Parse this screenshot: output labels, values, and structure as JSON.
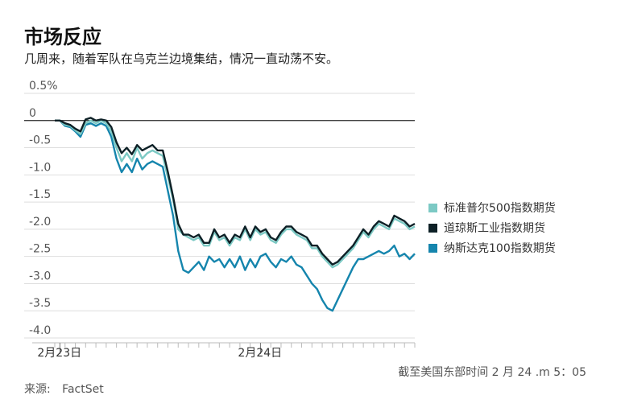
{
  "header": {
    "title": "市场反应",
    "subtitle": "几周来，随着军队在乌克兰边境集结，情况一直动荡不安。"
  },
  "footer": {
    "note": "截至美国东部时间 2 月 24 .m 5：05",
    "source_label": "来源:",
    "source": "FactSet"
  },
  "colors": {
    "sp500": "#7cc9c4",
    "dow": "#0d2026",
    "nasdaq": "#1585ad",
    "grid": "#dedede",
    "zero": "#222222"
  },
  "chart_data": {
    "type": "line",
    "title": "市场反应",
    "ylim": [
      -4.0,
      0.5
    ],
    "yticks": [
      0.5,
      0,
      -0.5,
      -1.0,
      -1.5,
      -2.0,
      -2.5,
      -3.0,
      -3.5,
      -4.0
    ],
    "ytick_labels": [
      "0.5%",
      "0",
      "-0.5",
      "-1.0",
      "-1.5",
      "-2.0",
      "-2.5",
      "-3.0",
      "-3.5",
      "-4.0"
    ],
    "xlim": [
      0,
      70
    ],
    "xtick_labels": [
      {
        "x": 1,
        "label": "2月23日"
      },
      {
        "x": 40,
        "label": "2月24日"
      }
    ],
    "grid": true,
    "legend_position": "right",
    "series": [
      {
        "name": "标准普尔500指数期货",
        "key": "sp500",
        "points": [
          [
            0,
            0
          ],
          [
            1,
            0
          ],
          [
            2,
            -0.08
          ],
          [
            3,
            -0.1
          ],
          [
            4,
            -0.18
          ],
          [
            5,
            -0.25
          ],
          [
            6,
            -0.05
          ],
          [
            7,
            0
          ],
          [
            8,
            -0.05
          ],
          [
            9,
            0
          ],
          [
            10,
            -0.05
          ],
          [
            11,
            -0.2
          ],
          [
            12,
            -0.5
          ],
          [
            13,
            -0.75
          ],
          [
            14,
            -0.6
          ],
          [
            15,
            -0.75
          ],
          [
            16,
            -0.5
          ],
          [
            17,
            -0.7
          ],
          [
            18,
            -0.6
          ],
          [
            19,
            -0.55
          ],
          [
            20,
            -0.6
          ],
          [
            21,
            -0.65
          ],
          [
            22,
            -1.05
          ],
          [
            23,
            -1.45
          ],
          [
            24,
            -2.0
          ],
          [
            25,
            -2.1
          ],
          [
            26,
            -2.15
          ],
          [
            27,
            -2.2
          ],
          [
            28,
            -2.15
          ],
          [
            29,
            -2.3
          ],
          [
            30,
            -2.3
          ],
          [
            31,
            -2.05
          ],
          [
            32,
            -2.2
          ],
          [
            33,
            -2.15
          ],
          [
            34,
            -2.3
          ],
          [
            35,
            -2.15
          ],
          [
            36,
            -2.2
          ],
          [
            37,
            -2.0
          ],
          [
            38,
            -2.2
          ],
          [
            39,
            -2.0
          ],
          [
            40,
            -2.1
          ],
          [
            41,
            -2.05
          ],
          [
            42,
            -2.2
          ],
          [
            43,
            -2.25
          ],
          [
            44,
            -2.1
          ],
          [
            45,
            -2.0
          ],
          [
            46,
            -2.0
          ],
          [
            47,
            -2.1
          ],
          [
            48,
            -2.15
          ],
          [
            49,
            -2.2
          ],
          [
            50,
            -2.35
          ],
          [
            51,
            -2.35
          ],
          [
            52,
            -2.5
          ],
          [
            53,
            -2.6
          ],
          [
            54,
            -2.7
          ],
          [
            55,
            -2.65
          ],
          [
            56,
            -2.55
          ],
          [
            57,
            -2.45
          ],
          [
            58,
            -2.35
          ],
          [
            59,
            -2.2
          ],
          [
            60,
            -2.05
          ],
          [
            61,
            -2.15
          ],
          [
            62,
            -2.0
          ],
          [
            63,
            -1.9
          ],
          [
            64,
            -1.95
          ],
          [
            65,
            -2.0
          ],
          [
            66,
            -1.8
          ],
          [
            67,
            -1.85
          ],
          [
            68,
            -1.9
          ],
          [
            69,
            -2.0
          ],
          [
            70,
            -1.95
          ]
        ]
      },
      {
        "name": "道琼斯工业指数期货",
        "key": "dow",
        "points": [
          [
            0,
            0
          ],
          [
            1,
            0
          ],
          [
            2,
            -0.05
          ],
          [
            3,
            -0.08
          ],
          [
            4,
            -0.15
          ],
          [
            5,
            -0.2
          ],
          [
            6,
            0.02
          ],
          [
            7,
            0.05
          ],
          [
            8,
            0
          ],
          [
            9,
            0.02
          ],
          [
            10,
            0
          ],
          [
            11,
            -0.12
          ],
          [
            12,
            -0.4
          ],
          [
            13,
            -0.6
          ],
          [
            14,
            -0.5
          ],
          [
            15,
            -0.62
          ],
          [
            16,
            -0.45
          ],
          [
            17,
            -0.55
          ],
          [
            18,
            -0.5
          ],
          [
            19,
            -0.45
          ],
          [
            20,
            -0.55
          ],
          [
            21,
            -0.55
          ],
          [
            22,
            -0.95
          ],
          [
            23,
            -1.4
          ],
          [
            24,
            -1.9
          ],
          [
            25,
            -2.1
          ],
          [
            26,
            -2.1
          ],
          [
            27,
            -2.15
          ],
          [
            28,
            -2.1
          ],
          [
            29,
            -2.25
          ],
          [
            30,
            -2.25
          ],
          [
            31,
            -2.0
          ],
          [
            32,
            -2.15
          ],
          [
            33,
            -2.1
          ],
          [
            34,
            -2.25
          ],
          [
            35,
            -2.1
          ],
          [
            36,
            -2.15
          ],
          [
            37,
            -1.95
          ],
          [
            38,
            -2.15
          ],
          [
            39,
            -1.95
          ],
          [
            40,
            -2.05
          ],
          [
            41,
            -2.0
          ],
          [
            42,
            -2.15
          ],
          [
            43,
            -2.2
          ],
          [
            44,
            -2.05
          ],
          [
            45,
            -1.95
          ],
          [
            46,
            -1.95
          ],
          [
            47,
            -2.05
          ],
          [
            48,
            -2.1
          ],
          [
            49,
            -2.15
          ],
          [
            50,
            -2.3
          ],
          [
            51,
            -2.3
          ],
          [
            52,
            -2.45
          ],
          [
            53,
            -2.55
          ],
          [
            54,
            -2.65
          ],
          [
            55,
            -2.6
          ],
          [
            56,
            -2.5
          ],
          [
            57,
            -2.4
          ],
          [
            58,
            -2.3
          ],
          [
            59,
            -2.15
          ],
          [
            60,
            -2.0
          ],
          [
            61,
            -2.1
          ],
          [
            62,
            -1.95
          ],
          [
            63,
            -1.85
          ],
          [
            64,
            -1.9
          ],
          [
            65,
            -1.95
          ],
          [
            66,
            -1.75
          ],
          [
            67,
            -1.8
          ],
          [
            68,
            -1.85
          ],
          [
            69,
            -1.95
          ],
          [
            70,
            -1.9
          ]
        ]
      },
      {
        "name": "纳斯达克100指数期货",
        "key": "nasdaq",
        "points": [
          [
            0,
            0
          ],
          [
            1,
            0
          ],
          [
            2,
            -0.1
          ],
          [
            3,
            -0.12
          ],
          [
            4,
            -0.2
          ],
          [
            5,
            -0.3
          ],
          [
            6,
            -0.08
          ],
          [
            7,
            -0.05
          ],
          [
            8,
            -0.1
          ],
          [
            9,
            -0.05
          ],
          [
            10,
            -0.1
          ],
          [
            11,
            -0.3
          ],
          [
            12,
            -0.7
          ],
          [
            13,
            -0.95
          ],
          [
            14,
            -0.8
          ],
          [
            15,
            -0.95
          ],
          [
            16,
            -0.7
          ],
          [
            17,
            -0.9
          ],
          [
            18,
            -0.8
          ],
          [
            19,
            -0.75
          ],
          [
            20,
            -0.8
          ],
          [
            21,
            -0.85
          ],
          [
            22,
            -1.3
          ],
          [
            23,
            -1.75
          ],
          [
            24,
            -2.4
          ],
          [
            25,
            -2.75
          ],
          [
            26,
            -2.8
          ],
          [
            27,
            -2.7
          ],
          [
            28,
            -2.6
          ],
          [
            29,
            -2.75
          ],
          [
            30,
            -2.5
          ],
          [
            31,
            -2.6
          ],
          [
            32,
            -2.55
          ],
          [
            33,
            -2.7
          ],
          [
            34,
            -2.55
          ],
          [
            35,
            -2.7
          ],
          [
            36,
            -2.5
          ],
          [
            37,
            -2.75
          ],
          [
            38,
            -2.55
          ],
          [
            39,
            -2.7
          ],
          [
            40,
            -2.5
          ],
          [
            41,
            -2.45
          ],
          [
            42,
            -2.6
          ],
          [
            43,
            -2.7
          ],
          [
            44,
            -2.55
          ],
          [
            45,
            -2.6
          ],
          [
            46,
            -2.5
          ],
          [
            47,
            -2.65
          ],
          [
            48,
            -2.7
          ],
          [
            49,
            -2.85
          ],
          [
            50,
            -3.0
          ],
          [
            51,
            -3.1
          ],
          [
            52,
            -3.3
          ],
          [
            53,
            -3.45
          ],
          [
            54,
            -3.5
          ],
          [
            55,
            -3.3
          ],
          [
            56,
            -3.1
          ],
          [
            57,
            -2.9
          ],
          [
            58,
            -2.7
          ],
          [
            59,
            -2.55
          ],
          [
            60,
            -2.55
          ],
          [
            61,
            -2.5
          ],
          [
            62,
            -2.45
          ],
          [
            63,
            -2.4
          ],
          [
            64,
            -2.45
          ],
          [
            65,
            -2.4
          ],
          [
            66,
            -2.3
          ],
          [
            67,
            -2.5
          ],
          [
            68,
            -2.45
          ],
          [
            69,
            -2.55
          ],
          [
            70,
            -2.45
          ]
        ]
      }
    ]
  }
}
